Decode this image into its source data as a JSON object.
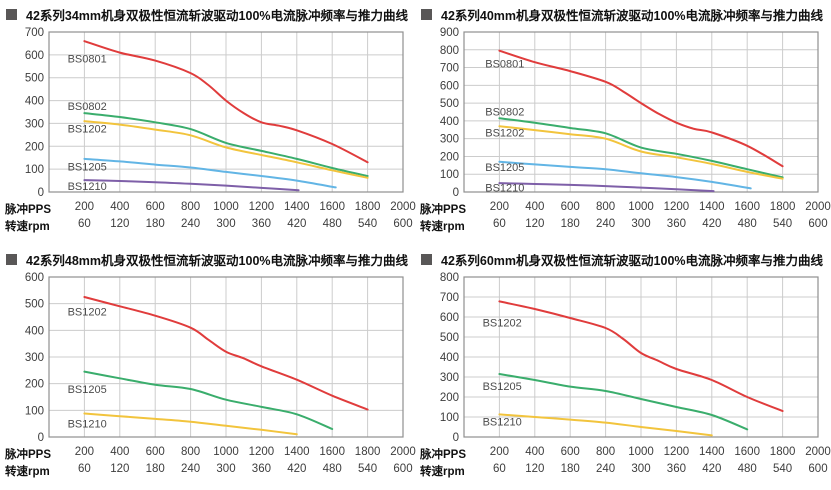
{
  "page": {
    "background": "#ffffff"
  },
  "axis": {
    "pps_label": "脉冲PPS",
    "rpm_label": "转速rpm",
    "x_max": 2000,
    "x_grid_step": 200,
    "pps_ticks": [
      200,
      400,
      600,
      800,
      1000,
      1200,
      1400,
      1600,
      1800,
      2000
    ],
    "rpm_ticks": [
      60,
      120,
      180,
      240,
      300,
      360,
      420,
      480,
      540,
      600
    ]
  },
  "style_colors": {
    "grid": "#cccccc",
    "plot_border": "#8f8f8f",
    "tick_text": "#3d3d3d",
    "series_label_text": "#4c4c4c",
    "bullet": "#595757"
  },
  "chart_data": [
    {
      "type": "line",
      "title": "42系列34mm机身双极性恒流斩波驱动100%电流脉冲频率与推力曲线",
      "xlabel": "脉冲PPS / 转速rpm",
      "ylabel": "",
      "xlim": [
        0,
        2000
      ],
      "ylim": [
        0,
        700
      ],
      "y_step": 100,
      "grid": true,
      "legend_position": "on-curve-left",
      "series": [
        {
          "name": "BS0801",
          "color": "#e03c3c",
          "x": [
            200,
            400,
            600,
            800,
            900,
            1000,
            1100,
            1200,
            1300,
            1400,
            1600,
            1800
          ],
          "y": [
            660,
            610,
            575,
            520,
            468,
            400,
            345,
            305,
            290,
            270,
            210,
            130
          ],
          "label_at": [
            105,
            585
          ]
        },
        {
          "name": "BS0802",
          "color": "#3aad6c",
          "x": [
            200,
            400,
            600,
            800,
            1000,
            1200,
            1400,
            1600,
            1800
          ],
          "y": [
            345,
            328,
            305,
            275,
            215,
            180,
            145,
            105,
            70
          ],
          "label_at": [
            105,
            377
          ]
        },
        {
          "name": "BS1202",
          "color": "#f2c43d",
          "x": [
            200,
            400,
            600,
            800,
            1000,
            1200,
            1400,
            1600,
            1800
          ],
          "y": [
            310,
            295,
            273,
            248,
            195,
            162,
            130,
            95,
            62
          ],
          "label_at": [
            105,
            278
          ]
        },
        {
          "name": "BS1205",
          "color": "#62b5e5",
          "x": [
            200,
            400,
            600,
            800,
            1000,
            1200,
            1400,
            1620
          ],
          "y": [
            145,
            134,
            120,
            107,
            88,
            70,
            50,
            20
          ],
          "label_at": [
            105,
            112
          ]
        },
        {
          "name": "BS1210",
          "color": "#7e5fa8",
          "x": [
            200,
            400,
            600,
            800,
            1000,
            1200,
            1410
          ],
          "y": [
            52,
            48,
            43,
            36,
            28,
            18,
            8
          ],
          "label_at": [
            105,
            27
          ]
        }
      ]
    },
    {
      "type": "line",
      "title": "42系列40mm机身双极性恒流斩波驱动100%电流脉冲频率与推力曲线",
      "xlabel": "脉冲PPS / 转速rpm",
      "ylabel": "",
      "xlim": [
        0,
        2000
      ],
      "ylim": [
        0,
        900
      ],
      "y_step": 100,
      "grid": true,
      "legend_position": "on-curve-left",
      "series": [
        {
          "name": "BS0801",
          "color": "#e03c3c",
          "x": [
            200,
            400,
            600,
            800,
            900,
            1000,
            1100,
            1200,
            1300,
            1400,
            1600,
            1800
          ],
          "y": [
            795,
            730,
            680,
            620,
            565,
            500,
            440,
            390,
            355,
            335,
            260,
            145
          ],
          "label_at": [
            120,
            722
          ]
        },
        {
          "name": "BS0802",
          "color": "#3aad6c",
          "x": [
            200,
            400,
            600,
            800,
            1000,
            1200,
            1400,
            1600,
            1800
          ],
          "y": [
            415,
            390,
            360,
            330,
            250,
            215,
            175,
            128,
            82
          ],
          "label_at": [
            120,
            452
          ]
        },
        {
          "name": "BS1202",
          "color": "#f2c43d",
          "x": [
            200,
            400,
            600,
            800,
            1000,
            1200,
            1400,
            1600,
            1800
          ],
          "y": [
            370,
            348,
            325,
            300,
            228,
            195,
            158,
            113,
            75
          ],
          "label_at": [
            120,
            335
          ]
        },
        {
          "name": "BS1205",
          "color": "#62b5e5",
          "x": [
            200,
            400,
            600,
            800,
            1000,
            1200,
            1400,
            1620
          ],
          "y": [
            170,
            155,
            141,
            128,
            105,
            84,
            57,
            20
          ],
          "label_at": [
            120,
            140
          ]
        },
        {
          "name": "BS1210",
          "color": "#7e5fa8",
          "x": [
            200,
            400,
            600,
            800,
            1000,
            1200,
            1410
          ],
          "y": [
            50,
            45,
            40,
            33,
            25,
            15,
            5
          ],
          "label_at": [
            120,
            25
          ]
        }
      ]
    },
    {
      "type": "line",
      "title": "42系列48mm机身双极性恒流斩波驱动100%电流脉冲频率与推力曲线",
      "xlabel": "脉冲PPS / 转速rpm",
      "ylabel": "",
      "xlim": [
        0,
        2000
      ],
      "ylim": [
        0,
        600
      ],
      "y_step": 100,
      "grid": true,
      "legend_position": "on-curve-left",
      "series": [
        {
          "name": "BS1202",
          "color": "#e03c3c",
          "x": [
            200,
            400,
            600,
            800,
            900,
            1000,
            1100,
            1200,
            1400,
            1600,
            1800
          ],
          "y": [
            525,
            490,
            455,
            410,
            365,
            320,
            295,
            265,
            215,
            155,
            103
          ],
          "label_at": [
            105,
            470
          ]
        },
        {
          "name": "BS1205",
          "color": "#3aad6c",
          "x": [
            200,
            400,
            600,
            800,
            1000,
            1200,
            1400,
            1600
          ],
          "y": [
            245,
            220,
            196,
            180,
            140,
            113,
            85,
            30
          ],
          "label_at": [
            105,
            180
          ]
        },
        {
          "name": "BS1210",
          "color": "#f2c43d",
          "x": [
            200,
            400,
            600,
            800,
            1000,
            1200,
            1400
          ],
          "y": [
            88,
            78,
            68,
            57,
            42,
            27,
            10
          ],
          "label_at": [
            105,
            50
          ]
        }
      ]
    },
    {
      "type": "line",
      "title": "42系列60mm机身双极性恒流斩波驱动100%电流脉冲频率与推力曲线",
      "xlabel": "脉冲PPS / 转速rpm",
      "ylabel": "",
      "xlim": [
        0,
        2000
      ],
      "ylim": [
        0,
        800
      ],
      "y_step": 100,
      "grid": true,
      "legend_position": "on-curve-left",
      "series": [
        {
          "name": "BS1202",
          "color": "#e03c3c",
          "x": [
            200,
            400,
            600,
            800,
            900,
            1000,
            1100,
            1200,
            1400,
            1600,
            1800
          ],
          "y": [
            678,
            640,
            595,
            545,
            490,
            420,
            380,
            340,
            285,
            200,
            130
          ],
          "label_at": [
            105,
            572
          ]
        },
        {
          "name": "BS1205",
          "color": "#3aad6c",
          "x": [
            200,
            400,
            600,
            800,
            1000,
            1200,
            1400,
            1600
          ],
          "y": [
            315,
            285,
            252,
            230,
            190,
            150,
            110,
            38
          ],
          "label_at": [
            105,
            255
          ]
        },
        {
          "name": "BS1210",
          "color": "#f2c43d",
          "x": [
            200,
            400,
            600,
            800,
            1000,
            1200,
            1400
          ],
          "y": [
            113,
            100,
            87,
            72,
            50,
            30,
            8
          ],
          "label_at": [
            105,
            78
          ]
        }
      ]
    }
  ]
}
